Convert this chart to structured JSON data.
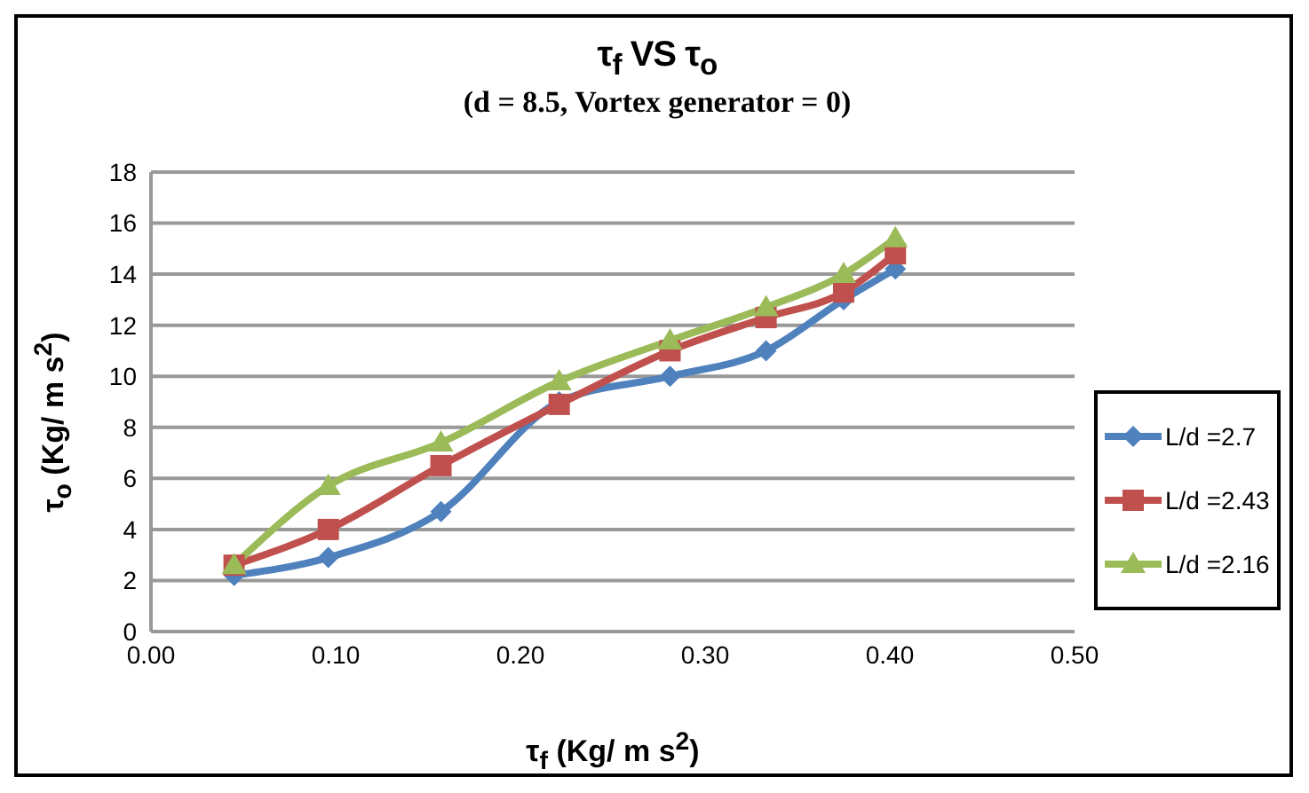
{
  "chart_data": {
    "type": "line",
    "title": "τ$_{f}$ VS τ$_{o}$",
    "subtitle": "(d = 8.5, Vortex generator = 0)",
    "xlabel": "τ$_{f}$ (Kg/ m s$^{2}$)",
    "ylabel": "τ$_{o}$ (Kg/ m s$^{2}$)",
    "x": [
      0.045,
      0.096,
      0.157,
      0.221,
      0.281,
      0.333,
      0.375,
      0.403
    ],
    "series": [
      {
        "name": "L/d =2.7",
        "color": "#4f81bd",
        "marker": "diamond",
        "values": [
          2.2,
          2.9,
          4.7,
          9.0,
          10.0,
          11.0,
          13.0,
          14.2
        ]
      },
      {
        "name": "L/d =2.43",
        "color": "#c0504d",
        "marker": "square",
        "values": [
          2.6,
          4.0,
          6.5,
          8.9,
          11.0,
          12.3,
          13.3,
          14.8
        ]
      },
      {
        "name": "L/d =2.16",
        "color": "#9bbb59",
        "marker": "triangle",
        "values": [
          2.6,
          5.7,
          7.4,
          9.8,
          11.4,
          12.7,
          14.0,
          15.4
        ]
      }
    ],
    "xlim": [
      0,
      0.5
    ],
    "xticks": [
      {
        "value": 0,
        "label": "0.00"
      },
      {
        "value": 0.1,
        "label": "0.10"
      },
      {
        "value": 0.2,
        "label": "0.20"
      },
      {
        "value": 0.3,
        "label": "0.30"
      },
      {
        "value": 0.4,
        "label": "0.40"
      },
      {
        "value": 0.5,
        "label": "0.50"
      }
    ],
    "ylim": [
      0,
      18
    ],
    "yticks": [
      0,
      2,
      4,
      6,
      8,
      10,
      12,
      14,
      16,
      18
    ],
    "grid": "y",
    "legend": "right",
    "line_style": "solid"
  }
}
